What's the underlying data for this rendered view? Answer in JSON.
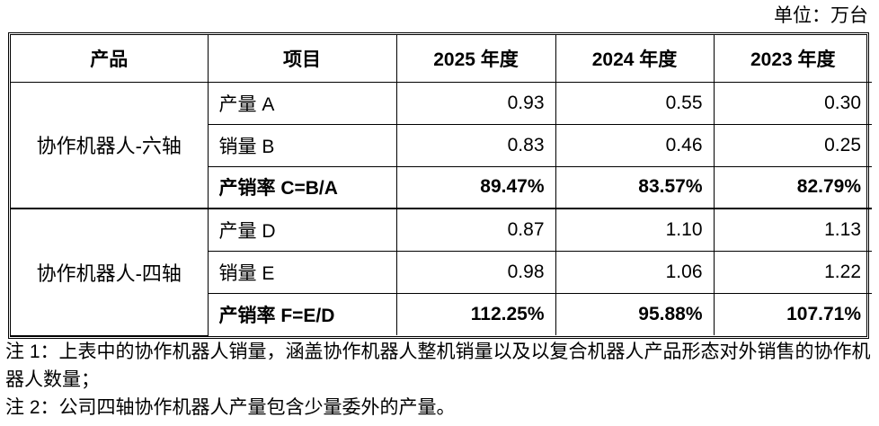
{
  "unit_label": "单位：万台",
  "table": {
    "headers": [
      "产品",
      "项目",
      "2025 年度",
      "2024 年度",
      "2023 年度"
    ],
    "groups": [
      {
        "product": "协作机器人-六轴",
        "rows": [
          {
            "item": "产量 A",
            "v2025": "0.93",
            "v2024": "0.55",
            "v2023": "0.30",
            "bold": false
          },
          {
            "item": "销量 B",
            "v2025": "0.83",
            "v2024": "0.46",
            "v2023": "0.25",
            "bold": false
          },
          {
            "item": "产销率 C=B/A",
            "v2025": "89.47%",
            "v2024": "83.57%",
            "v2023": "82.79%",
            "bold": true
          }
        ]
      },
      {
        "product": "协作机器人-四轴",
        "rows": [
          {
            "item": "产量 D",
            "v2025": "0.87",
            "v2024": "1.10",
            "v2023": "1.13",
            "bold": false
          },
          {
            "item": "销量 E",
            "v2025": "0.98",
            "v2024": "1.06",
            "v2023": "1.22",
            "bold": false
          },
          {
            "item": "产销率 F=E/D",
            "v2025": "112.25%",
            "v2024": "95.88%",
            "v2023": "107.71%",
            "bold": true
          }
        ]
      }
    ]
  },
  "notes": {
    "note1": "注 1：上表中的协作机器人销量，涵盖协作机器人整机销量以及以复合机器人产品形态对外销售的协作机器人数量；",
    "note2": "注 2：公司四轴协作机器人产量包含少量委外的产量。"
  }
}
